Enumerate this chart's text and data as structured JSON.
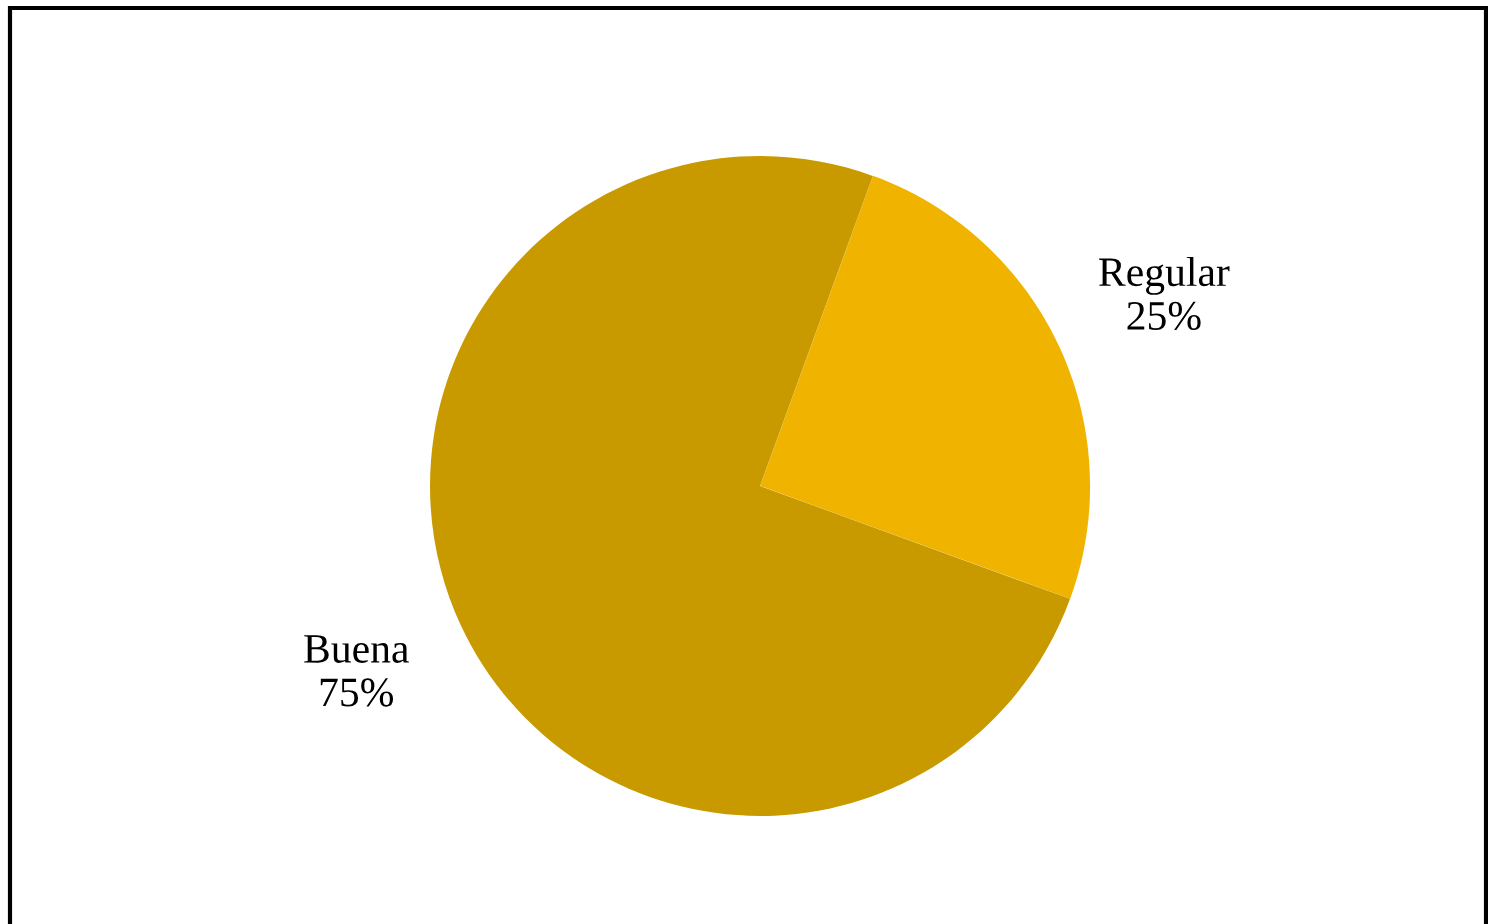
{
  "chart_data": {
    "type": "pie",
    "categories": [
      "Regular",
      "Buena"
    ],
    "values": [
      25,
      75
    ],
    "value_labels": [
      "25%",
      "75%"
    ],
    "colors": [
      "#f0b400",
      "#c99a00"
    ]
  }
}
